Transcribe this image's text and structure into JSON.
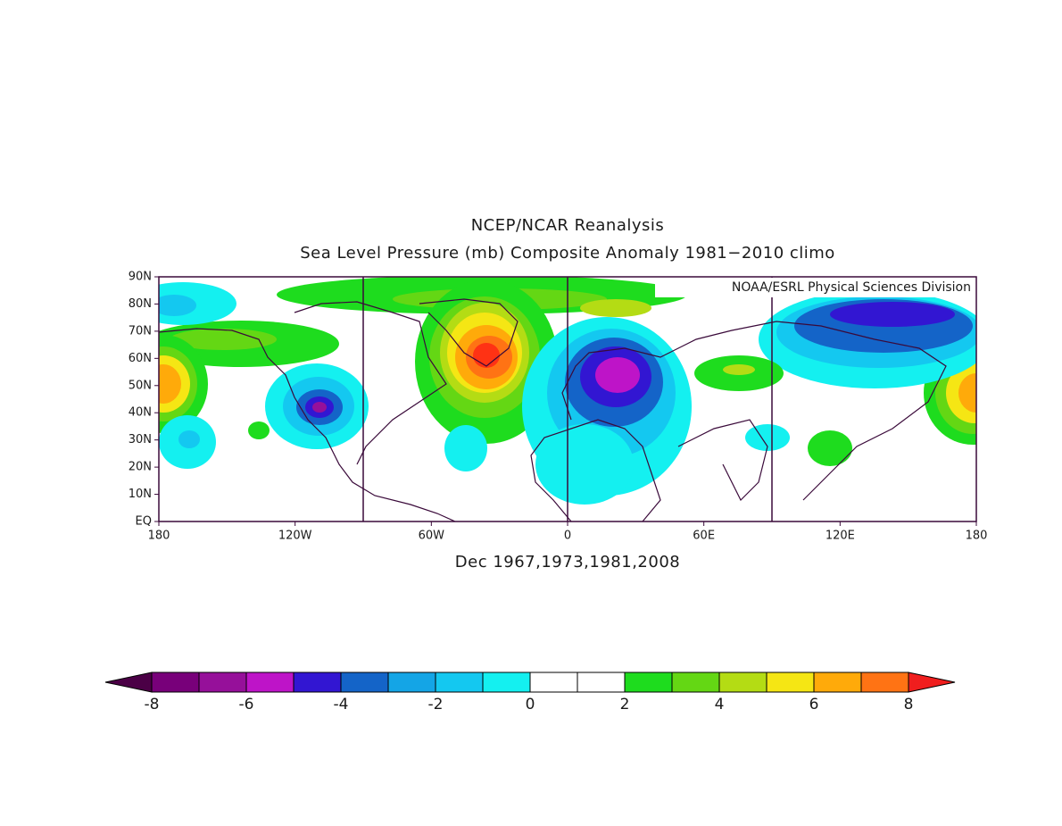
{
  "title": "NCEP/NCAR Reanalysis",
  "subtitle": "Sea Level Pressure (mb) Composite Anomaly 1981−2010 climo",
  "credit": "NOAA/ESRL Physical Sciences Division",
  "caption": "Dec 1967,1973,1981,2008",
  "map": {
    "lonlim": [
      -180,
      180
    ],
    "latlim": [
      0,
      90
    ],
    "meridians": [
      -90,
      0,
      90
    ],
    "lon_ticks": [
      {
        "value": -180,
        "label": "180"
      },
      {
        "value": -120,
        "label": "120W"
      },
      {
        "value": -60,
        "label": "60W"
      },
      {
        "value": 0,
        "label": "0"
      },
      {
        "value": 60,
        "label": "60E"
      },
      {
        "value": 120,
        "label": "120E"
      },
      {
        "value": 180,
        "label": "180"
      }
    ],
    "lat_ticks": [
      {
        "value": 0,
        "label": "EQ"
      },
      {
        "value": 10,
        "label": "10N"
      },
      {
        "value": 20,
        "label": "20N"
      },
      {
        "value": 30,
        "label": "30N"
      },
      {
        "value": 40,
        "label": "40N"
      },
      {
        "value": 50,
        "label": "50N"
      },
      {
        "value": 60,
        "label": "60N"
      },
      {
        "value": 70,
        "label": "70N"
      },
      {
        "value": 80,
        "label": "80N"
      },
      {
        "value": 90,
        "label": "90N"
      }
    ]
  },
  "colorbar": {
    "levels": [
      -8,
      -7,
      -6,
      -5,
      -4,
      -3,
      -2,
      -1,
      0,
      1,
      2,
      3,
      4,
      5,
      6,
      7,
      8
    ],
    "colors": [
      "#4b0046",
      "#78007a",
      "#96109a",
      "#be14c8",
      "#3216d2",
      "#1464c8",
      "#14a5e6",
      "#14c8f0",
      "#14f0f0",
      "#ffffff",
      "#ffffff",
      "#1edc1e",
      "#64d714",
      "#b4dc14",
      "#f5e614",
      "#ffaa0a",
      "#ff7314",
      "#ff3214",
      "#f01e1e"
    ],
    "ticks": [
      -8,
      -6,
      -4,
      -2,
      0,
      2,
      4,
      6,
      8
    ]
  }
}
